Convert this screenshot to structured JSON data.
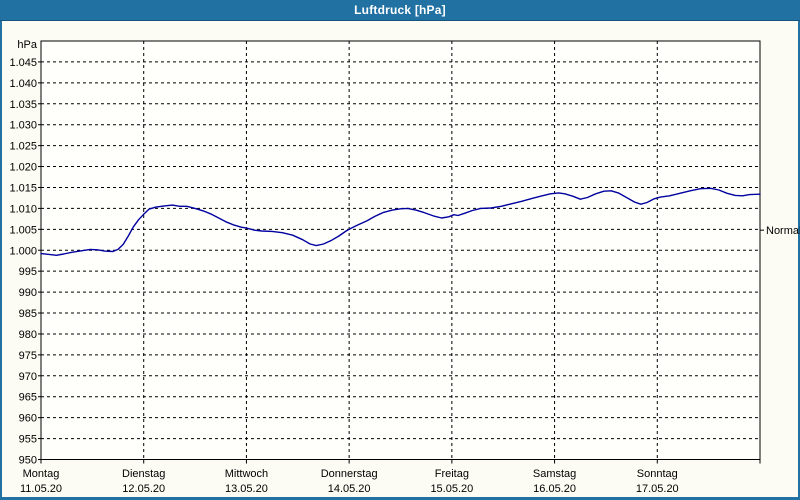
{
  "window": {
    "title": "Luftdruck [hPa]"
  },
  "colors": {
    "titlebar_bg": "#2171a3",
    "titlebar_text": "#ffffff",
    "window_bg": "#fcfcf4",
    "plot_bg": "#fffffb",
    "grid": "#000000",
    "curve": "#0000a0",
    "text": "#000000"
  },
  "chart_data": {
    "type": "line",
    "title": "Luftdruck [hPa]",
    "y_unit_label": "hPa",
    "ylim": [
      950,
      1050
    ],
    "y_tick_step": 5,
    "y_tick_values": [
      1045,
      1040,
      1035,
      1030,
      1025,
      1020,
      1015,
      1010,
      1005,
      1000,
      995,
      990,
      985,
      980,
      975,
      970,
      965,
      960,
      955,
      950
    ],
    "y_tick_labels": [
      "1.045",
      "1.040",
      "1.035",
      "1.030",
      "1.025",
      "1.020",
      "1.015",
      "1.010",
      "1.005",
      "1.000",
      "995",
      "990",
      "985",
      "980",
      "975",
      "970",
      "965",
      "960",
      "955",
      "950"
    ],
    "grid": "dashed",
    "x_days": [
      {
        "name": "Montag",
        "date": "11.05.20"
      },
      {
        "name": "Dienstag",
        "date": "12.05.20"
      },
      {
        "name": "Mittwoch",
        "date": "13.05.20"
      },
      {
        "name": "Donnerstag",
        "date": "14.05.20"
      },
      {
        "name": "Freitag",
        "date": "15.05.20"
      },
      {
        "name": "Samstag",
        "date": "16.05.20"
      },
      {
        "name": "Sonntag",
        "date": "17.05.20"
      }
    ],
    "normal_marker": {
      "label": "Normal",
      "value": 1004.8
    },
    "series": [
      {
        "name": "Luftdruck",
        "color": "#0000a0",
        "points": [
          [
            0.0,
            999.2
          ],
          [
            0.08,
            999.0
          ],
          [
            0.15,
            998.8
          ],
          [
            0.22,
            999.1
          ],
          [
            0.3,
            999.5
          ],
          [
            0.4,
            999.9
          ],
          [
            0.48,
            1000.2
          ],
          [
            0.55,
            1000.1
          ],
          [
            0.62,
            999.8
          ],
          [
            0.7,
            999.7
          ],
          [
            0.75,
            1000.2
          ],
          [
            0.8,
            1001.4
          ],
          [
            0.85,
            1003.4
          ],
          [
            0.9,
            1005.6
          ],
          [
            0.95,
            1007.3
          ],
          [
            1.0,
            1008.6
          ],
          [
            1.05,
            1009.8
          ],
          [
            1.12,
            1010.3
          ],
          [
            1.2,
            1010.6
          ],
          [
            1.28,
            1010.8
          ],
          [
            1.35,
            1010.5
          ],
          [
            1.42,
            1010.5
          ],
          [
            1.5,
            1010.0
          ],
          [
            1.58,
            1009.4
          ],
          [
            1.65,
            1008.7
          ],
          [
            1.73,
            1007.7
          ],
          [
            1.8,
            1006.8
          ],
          [
            1.88,
            1006.0
          ],
          [
            1.95,
            1005.5
          ],
          [
            2.0,
            1005.3
          ],
          [
            2.08,
            1004.8
          ],
          [
            2.15,
            1004.6
          ],
          [
            2.25,
            1004.5
          ],
          [
            2.35,
            1004.2
          ],
          [
            2.45,
            1003.6
          ],
          [
            2.55,
            1002.5
          ],
          [
            2.62,
            1001.5
          ],
          [
            2.68,
            1001.1
          ],
          [
            2.75,
            1001.5
          ],
          [
            2.83,
            1002.4
          ],
          [
            2.9,
            1003.4
          ],
          [
            2.97,
            1004.6
          ],
          [
            3.0,
            1005.0
          ],
          [
            3.08,
            1006.0
          ],
          [
            3.17,
            1007.0
          ],
          [
            3.25,
            1008.1
          ],
          [
            3.33,
            1009.0
          ],
          [
            3.42,
            1009.6
          ],
          [
            3.5,
            1009.9
          ],
          [
            3.57,
            1010.0
          ],
          [
            3.65,
            1009.6
          ],
          [
            3.73,
            1009.0
          ],
          [
            3.82,
            1008.2
          ],
          [
            3.9,
            1007.7
          ],
          [
            3.97,
            1008.0
          ],
          [
            4.02,
            1008.5
          ],
          [
            4.06,
            1008.3
          ],
          [
            4.12,
            1008.8
          ],
          [
            4.2,
            1009.5
          ],
          [
            4.28,
            1010.0
          ],
          [
            4.38,
            1010.1
          ],
          [
            4.48,
            1010.5
          ],
          [
            4.58,
            1011.1
          ],
          [
            4.68,
            1011.7
          ],
          [
            4.78,
            1012.4
          ],
          [
            4.88,
            1013.0
          ],
          [
            4.96,
            1013.5
          ],
          [
            5.04,
            1013.7
          ],
          [
            5.1,
            1013.5
          ],
          [
            5.18,
            1012.9
          ],
          [
            5.25,
            1012.2
          ],
          [
            5.32,
            1012.6
          ],
          [
            5.4,
            1013.5
          ],
          [
            5.48,
            1014.1
          ],
          [
            5.55,
            1014.2
          ],
          [
            5.62,
            1013.7
          ],
          [
            5.7,
            1012.6
          ],
          [
            5.78,
            1011.5
          ],
          [
            5.84,
            1011.0
          ],
          [
            5.9,
            1011.4
          ],
          [
            5.97,
            1012.3
          ],
          [
            6.03,
            1012.7
          ],
          [
            6.12,
            1013.0
          ],
          [
            6.22,
            1013.6
          ],
          [
            6.32,
            1014.2
          ],
          [
            6.42,
            1014.7
          ],
          [
            6.52,
            1014.8
          ],
          [
            6.6,
            1014.4
          ],
          [
            6.68,
            1013.6
          ],
          [
            6.76,
            1013.1
          ],
          [
            6.83,
            1013.0
          ],
          [
            6.9,
            1013.3
          ],
          [
            7.0,
            1013.4
          ]
        ]
      }
    ]
  }
}
